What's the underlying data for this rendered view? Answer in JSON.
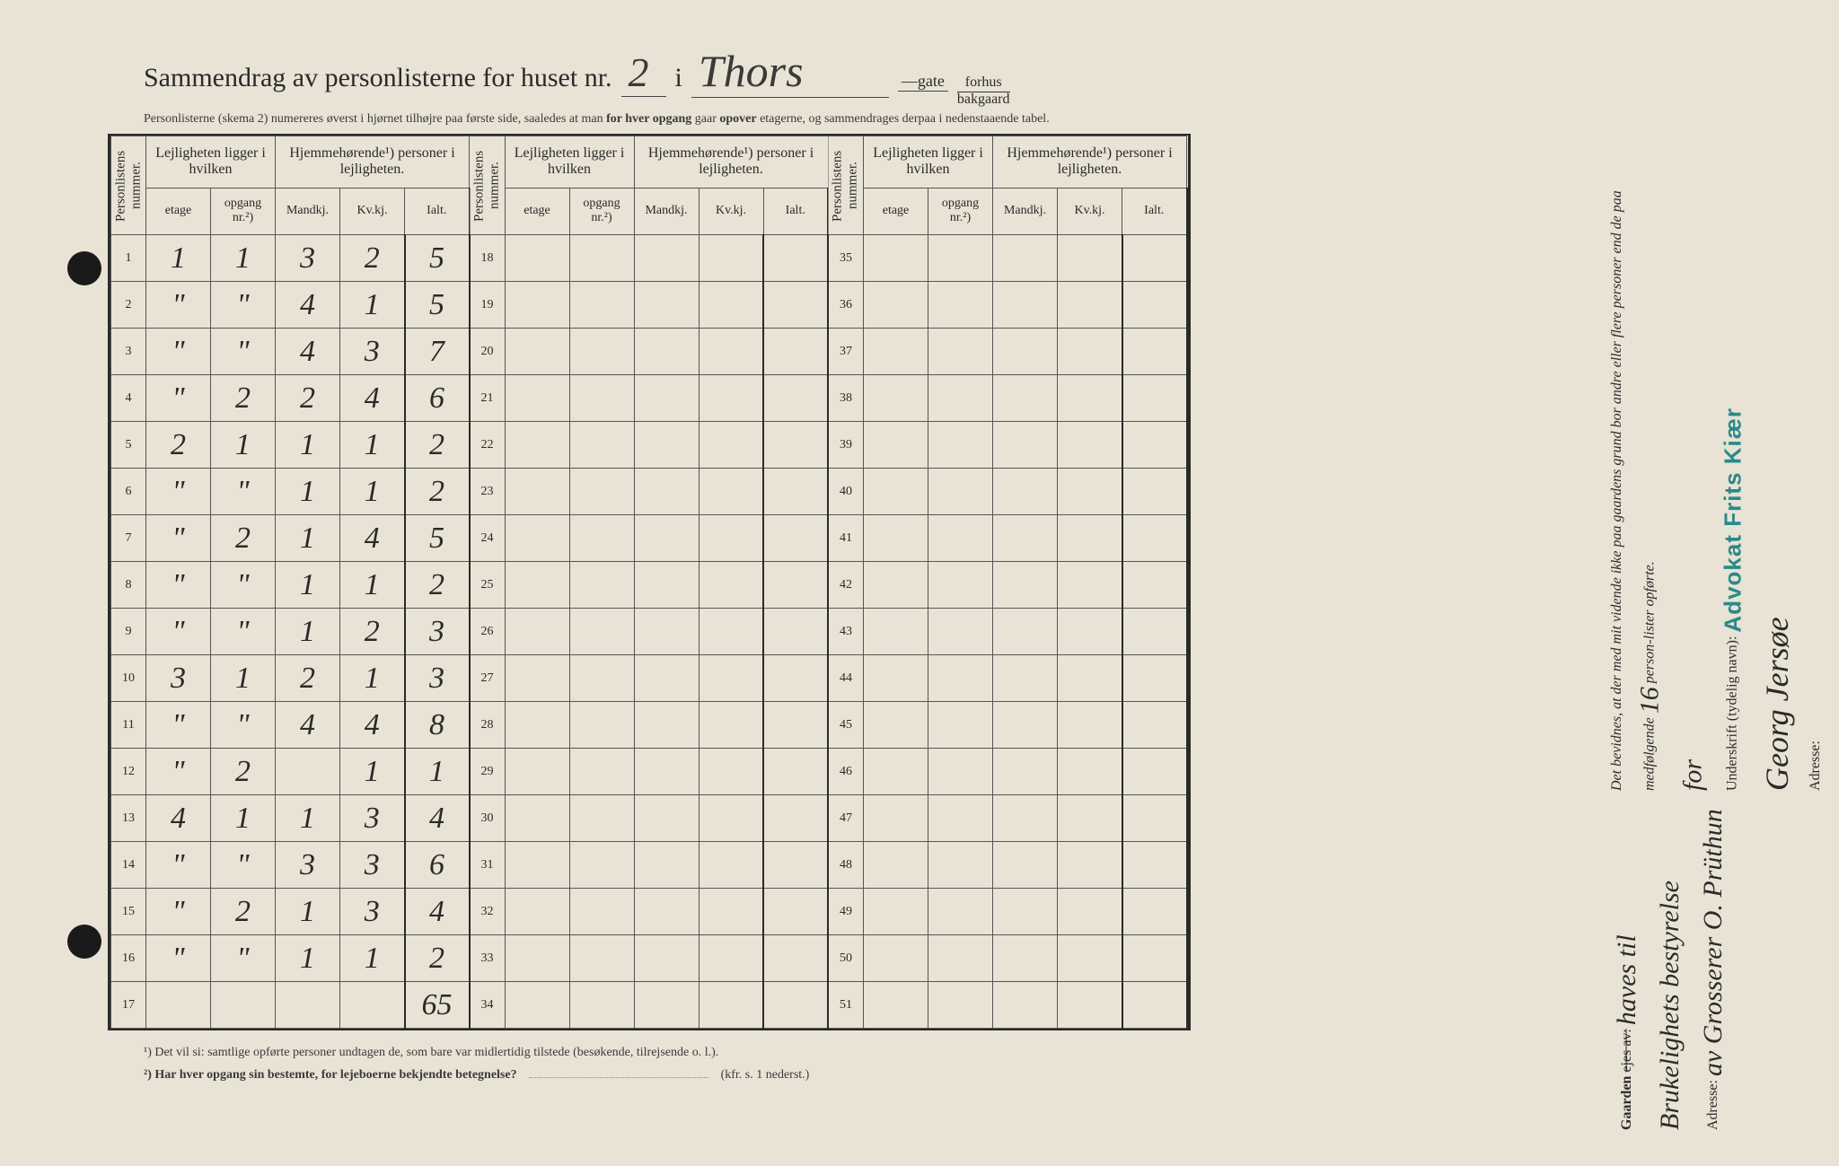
{
  "header": {
    "title_prefix": "Sammendrag av personlisterne for huset nr.",
    "house_number": "2",
    "connector": "i",
    "street_name": "Thors",
    "gate_label": "gate",
    "fraction_top": "forhus",
    "fraction_bottom": "bakgaard",
    "subtitle_plain1": "Personlisterne (skema 2) numereres øverst i hjørnet tilhøjre paa første side, saaledes at man ",
    "subtitle_bold1": "for hver opgang",
    "subtitle_plain2": " gaar ",
    "subtitle_bold2": "opover",
    "subtitle_plain3": " etagerne, og sammendrages derpaa i nedenstaaende tabel."
  },
  "table": {
    "col_personlistens": "Personlistens nummer.",
    "col_lejlighet": "Lejligheten ligger i hvilken",
    "col_hjemme": "Hjemmehørende¹) personer i lejligheten.",
    "sub_etage": "etage",
    "sub_opgang": "opgang nr.²)",
    "sub_mandkj": "Mandkj.",
    "sub_kvkj": "Kv.kj.",
    "sub_ialt": "Ialt.",
    "sections": [
      {
        "start": 1,
        "rows": [
          {
            "n": "1",
            "etage": "1",
            "opgang": "1",
            "m": "3",
            "k": "2",
            "t": "5"
          },
          {
            "n": "2",
            "etage": "\"",
            "opgang": "\"",
            "m": "4",
            "k": "1",
            "t": "5"
          },
          {
            "n": "3",
            "etage": "\"",
            "opgang": "\"",
            "m": "4",
            "k": "3",
            "t": "7"
          },
          {
            "n": "4",
            "etage": "\"",
            "opgang": "2",
            "m": "2",
            "k": "4",
            "t": "6"
          },
          {
            "n": "5",
            "etage": "2",
            "opgang": "1",
            "m": "1",
            "k": "1",
            "t": "2"
          },
          {
            "n": "6",
            "etage": "\"",
            "opgang": "\"",
            "m": "1",
            "k": "1",
            "t": "2"
          },
          {
            "n": "7",
            "etage": "\"",
            "opgang": "2",
            "m": "1",
            "k": "4",
            "t": "5"
          },
          {
            "n": "8",
            "etage": "\"",
            "opgang": "\"",
            "m": "1",
            "k": "1",
            "t": "2"
          },
          {
            "n": "9",
            "etage": "\"",
            "opgang": "\"",
            "m": "1",
            "k": "2",
            "t": "3"
          },
          {
            "n": "10",
            "etage": "3",
            "opgang": "1",
            "m": "2",
            "k": "1",
            "t": "3"
          },
          {
            "n": "11",
            "etage": "\"",
            "opgang": "\"",
            "m": "4",
            "k": "4",
            "t": "8"
          },
          {
            "n": "12",
            "etage": "\"",
            "opgang": "2",
            "m": "",
            "k": "1",
            "t": "1"
          },
          {
            "n": "13",
            "etage": "4",
            "opgang": "1",
            "m": "1",
            "k": "3",
            "t": "4"
          },
          {
            "n": "14",
            "etage": "\"",
            "opgang": "\"",
            "m": "3",
            "k": "3",
            "t": "6"
          },
          {
            "n": "15",
            "etage": "\"",
            "opgang": "2",
            "m": "1",
            "k": "3",
            "t": "4"
          },
          {
            "n": "16",
            "etage": "\"",
            "opgang": "\"",
            "m": "1",
            "k": "1",
            "t": "2"
          },
          {
            "n": "17",
            "etage": "",
            "opgang": "",
            "m": "",
            "k": "",
            "t": "65"
          }
        ]
      },
      {
        "start": 18,
        "rows": [
          {
            "n": "18"
          },
          {
            "n": "19"
          },
          {
            "n": "20"
          },
          {
            "n": "21"
          },
          {
            "n": "22"
          },
          {
            "n": "23"
          },
          {
            "n": "24"
          },
          {
            "n": "25"
          },
          {
            "n": "26"
          },
          {
            "n": "27"
          },
          {
            "n": "28"
          },
          {
            "n": "29"
          },
          {
            "n": "30"
          },
          {
            "n": "31"
          },
          {
            "n": "32"
          },
          {
            "n": "33"
          },
          {
            "n": "34"
          }
        ]
      },
      {
        "start": 35,
        "rows": [
          {
            "n": "35"
          },
          {
            "n": "36"
          },
          {
            "n": "37"
          },
          {
            "n": "38"
          },
          {
            "n": "39"
          },
          {
            "n": "40"
          },
          {
            "n": "41"
          },
          {
            "n": "42"
          },
          {
            "n": "43"
          },
          {
            "n": "44"
          },
          {
            "n": "45"
          },
          {
            "n": "46"
          },
          {
            "n": "47"
          },
          {
            "n": "48"
          },
          {
            "n": "49"
          },
          {
            "n": "50"
          },
          {
            "n": "51"
          }
        ]
      }
    ]
  },
  "footnotes": {
    "f1": "¹)  Det vil si: samtlige opførte personer undtagen de, som bare var midlertidig tilstede (besøkende, tilrejsende o. l.).",
    "f2_label": "²)  Har hver opgang sin bestemte, for lejeboerne bekjendte betegnelse?",
    "f2_ref": "(kfr. s. 1 nederst.)"
  },
  "right": {
    "gaarden_label": "Gaarden",
    "gaarden_strike": "ejes av:",
    "gaarden_hw1": "haves til",
    "gaarden_hw2": "Brukelighets bestyrelse",
    "adresse1_label": "Adresse:",
    "adresse1_hw": "av Grosserer O. Prüthun",
    "bevidnes": "Det bevidnes, at der med mit vidende ikke paa gaardens grund bor andre eller flere personer end de paa medfølgende",
    "bevidnes_num": "16",
    "bevidnes_suffix": "person-lister opførte.",
    "for": "for",
    "underskrift_label": "Underskrift (tydelig navn):",
    "stamp": "Advokat Frits Kiær",
    "signature": "Georg Jersøe",
    "adresse2_label": "Adresse:"
  },
  "colors": {
    "paper": "#e8e3d4",
    "ink": "#2a2a2a",
    "handwriting": "#3a3a3a",
    "stamp": "#2a8a8a",
    "border": "#555555"
  }
}
